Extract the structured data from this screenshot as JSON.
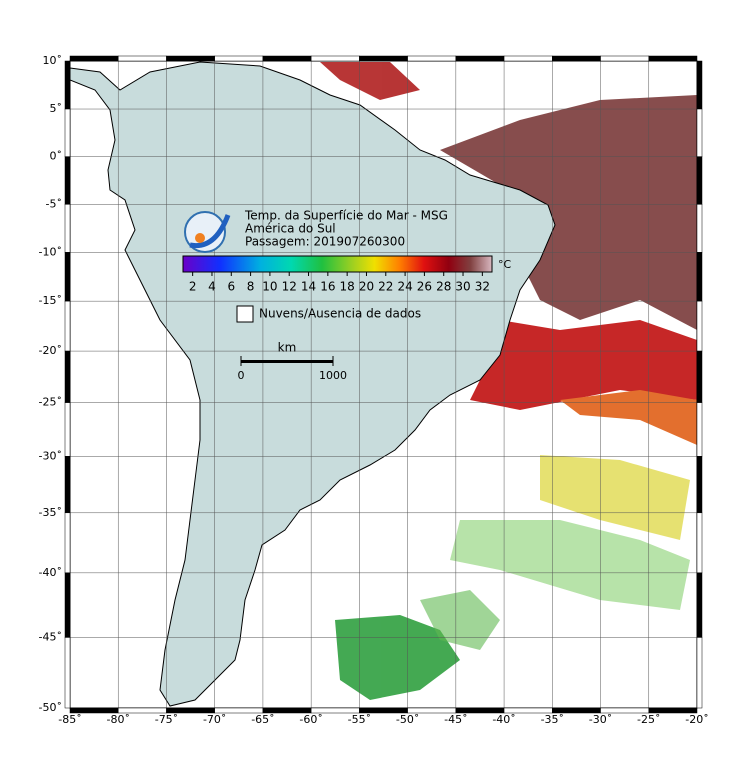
{
  "map": {
    "xlim": [
      -85,
      -20
    ],
    "ylim": [
      -50,
      10
    ],
    "grid": true,
    "xticks": [
      {
        "value": -85,
        "label": "-85˚"
      },
      {
        "value": -80,
        "label": "-80˚"
      },
      {
        "value": -75,
        "label": "-75˚"
      },
      {
        "value": -70,
        "label": "-70˚"
      },
      {
        "value": -65,
        "label": "-65˚"
      },
      {
        "value": -60,
        "label": "-60˚"
      },
      {
        "value": -55,
        "label": "-55˚"
      },
      {
        "value": -50,
        "label": "-50˚"
      },
      {
        "value": -45,
        "label": "-45˚"
      },
      {
        "value": -40,
        "label": "-40˚"
      },
      {
        "value": -35,
        "label": "-35˚"
      },
      {
        "value": -30,
        "label": "-30˚"
      },
      {
        "value": -25,
        "label": "-25˚"
      },
      {
        "value": -20,
        "label": "-20˚"
      }
    ],
    "yticks": [
      {
        "value": 10,
        "label": "10˚"
      },
      {
        "value": 5,
        "label": "5˚"
      },
      {
        "value": 0,
        "label": "0˚"
      },
      {
        "value": -5,
        "label": "-5˚"
      },
      {
        "value": -10,
        "label": "-10˚"
      },
      {
        "value": -15,
        "label": "-15˚"
      },
      {
        "value": -20,
        "label": "-20˚"
      },
      {
        "value": -25,
        "label": "-25˚"
      },
      {
        "value": -30,
        "label": "-30˚"
      },
      {
        "value": -35,
        "label": "-35˚"
      },
      {
        "value": -40,
        "label": "-40˚"
      },
      {
        "value": -45,
        "label": "-45˚"
      },
      {
        "value": -50,
        "label": "-50˚"
      }
    ]
  },
  "legend": {
    "title": [
      "Temp. da Superfície do Mar - MSG",
      "América do Sul",
      "Passagem: 201907260300"
    ],
    "colorbar": {
      "range": [
        1,
        33
      ],
      "ticks": [
        2,
        4,
        6,
        8,
        10,
        12,
        14,
        16,
        18,
        20,
        22,
        24,
        26,
        28,
        30,
        32
      ],
      "unit": "°C"
    },
    "cloud_label": "Nuvens/Ausencia de dados"
  },
  "scale_bar": {
    "unit": "km",
    "range": [
      0,
      1000
    ],
    "ticks": [
      0,
      1000
    ]
  }
}
